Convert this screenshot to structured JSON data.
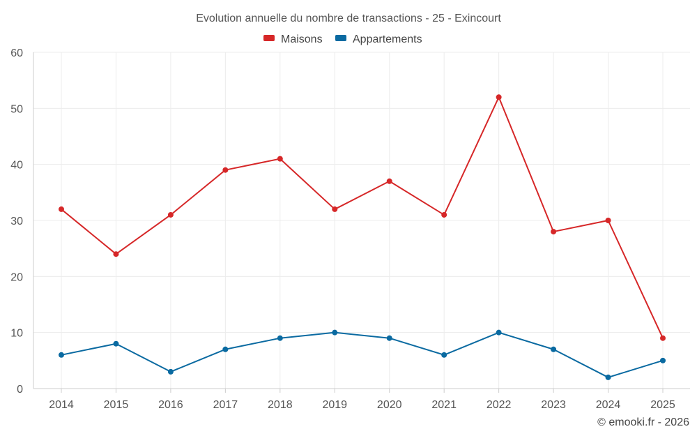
{
  "chart_data": {
    "type": "line",
    "title": "Evolution annuelle du nombre de transactions - 25 - Exincourt",
    "categories": [
      "2014",
      "2015",
      "2016",
      "2017",
      "2018",
      "2019",
      "2020",
      "2021",
      "2022",
      "2023",
      "2024",
      "2025"
    ],
    "series": [
      {
        "name": "Maisons",
        "color": "#d62728",
        "values": [
          32,
          24,
          31,
          39,
          41,
          32,
          37,
          31,
          52,
          28,
          30,
          9
        ]
      },
      {
        "name": "Appartements",
        "color": "#0a6aa1",
        "values": [
          6,
          8,
          3,
          7,
          9,
          10,
          9,
          6,
          10,
          7,
          2,
          5
        ]
      }
    ],
    "ylim": [
      0,
      60
    ],
    "yticks": [
      0,
      10,
      20,
      30,
      40,
      50,
      60
    ],
    "grid": true,
    "legend": "top-center",
    "xlabel": "",
    "ylabel": ""
  },
  "credit": "© emooki.fr - 2026"
}
